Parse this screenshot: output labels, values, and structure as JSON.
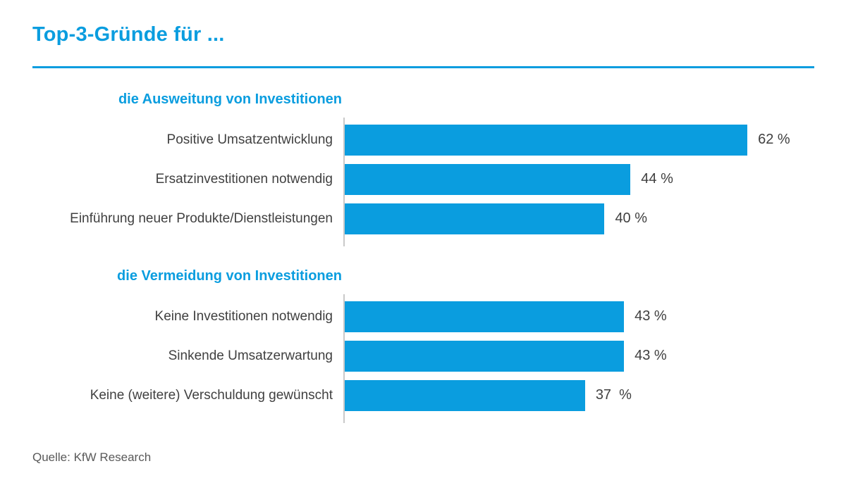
{
  "title": "Top-3-Gründe für ...",
  "source": "Quelle: KfW Research",
  "colors": {
    "accent": "#0a9ddf",
    "label": "#404040",
    "axis": "#c9c9c9",
    "source_text": "#595959"
  },
  "chart_data": {
    "type": "bar",
    "orientation": "horizontal",
    "title": "Top-3-Gründe für ...",
    "unit": "%",
    "xlim": [
      0,
      71
    ],
    "grid": false,
    "legend": false,
    "value_labels_position": "right-of-bar",
    "groups": [
      {
        "header": "die Ausweitung von Investitionen",
        "categories": [
          "Positive Umsatzentwicklung",
          "Ersatzinvestitionen notwendig",
          "Einführung neuer Produkte/Dienstleistungen"
        ],
        "values": [
          62,
          44,
          40
        ],
        "value_labels": [
          "62 %",
          "44 %",
          "40 %"
        ]
      },
      {
        "header": "die Vermeidung von Investitionen",
        "categories": [
          "Keine Investitionen notwendig",
          "Sinkende Umsatzerwartung",
          "Keine (weitere) Verschuldung gewünscht"
        ],
        "values": [
          43,
          43,
          37
        ],
        "value_labels": [
          "43 %",
          "43 %",
          "37  %"
        ]
      }
    ]
  }
}
